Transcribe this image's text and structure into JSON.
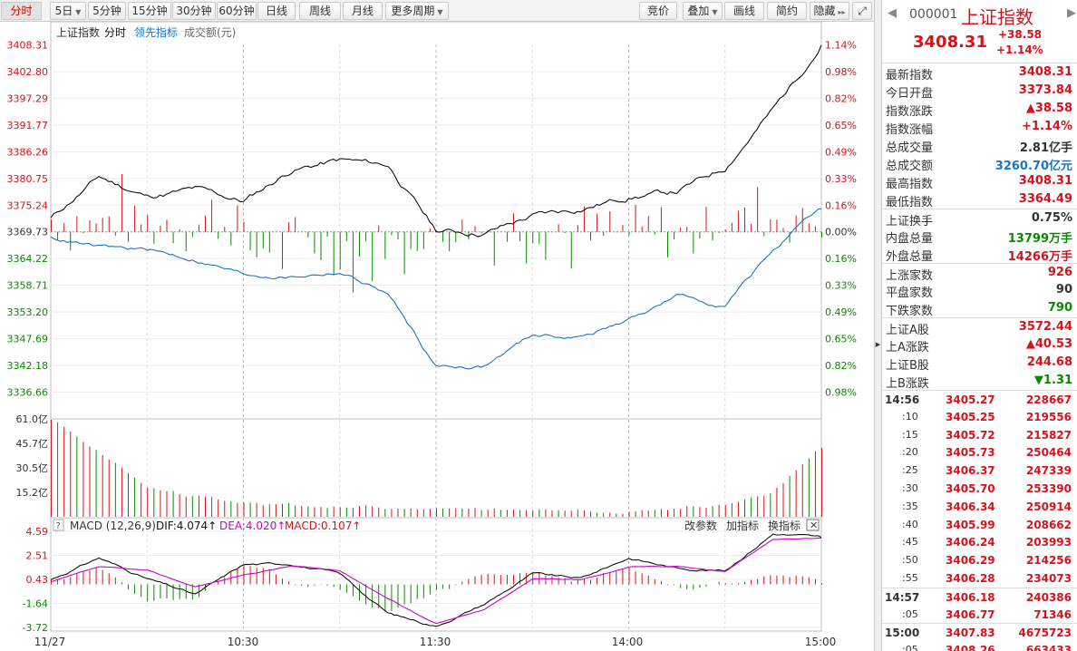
{
  "toolbar": {
    "buttons": [
      "分时",
      "5日",
      "5分钟",
      "15分钟",
      "30分钟",
      "60分钟",
      "日线",
      "周线",
      "月线",
      "更多周期"
    ],
    "right_buttons": [
      "竞价",
      "叠加",
      "画线",
      "简约",
      "隐藏"
    ]
  },
  "chart": {
    "legend": {
      "name": "上证指数",
      "period": "分时",
      "leading": "领先指标",
      "turnover": "成交额(元)"
    },
    "price_axis": [
      "3408.31",
      "3402.80",
      "3397.29",
      "3391.77",
      "3386.26",
      "3380.75",
      "3375.24",
      "3369.73",
      "3364.22",
      "3358.71",
      "3353.20",
      "3347.69",
      "3342.18",
      "3336.66"
    ],
    "pct_axis": [
      "1.14%",
      "0.98%",
      "0.82%",
      "0.65%",
      "0.49%",
      "0.33%",
      "0.16%",
      "0.00%",
      "0.16%",
      "0.33%",
      "0.49%",
      "0.65%",
      "0.82%",
      "0.98%"
    ],
    "volume_axis": [
      "61.0亿",
      "45.7亿",
      "30.5亿",
      "15.2亿"
    ],
    "macd_axis": [
      "4.59",
      "2.51",
      "0.43",
      "-1.64",
      "-3.72"
    ],
    "macd_header": {
      "title": "MACD (12,26,9)",
      "dif": "DIF:4.074↑",
      "dea": "DEA:4.020↑",
      "macd": "MACD:0.107↑"
    },
    "macd_links": [
      "改参数",
      "加指标",
      "换指标"
    ],
    "time_labels": [
      "11/27",
      "10:30",
      "11:30",
      "14:00",
      "15:00"
    ],
    "colors": {
      "up": "#d6131c",
      "down": "#0b8a00",
      "price_line": "#111111",
      "leading_line": "#1c74c6",
      "dea_line": "#cc00cc",
      "grid": "#e4e4e4"
    },
    "chart_data": [
      {
        "type": "line",
        "title": "上证指数 分时",
        "x": [
          "09:30",
          "09:45",
          "10:00",
          "10:15",
          "10:30",
          "10:45",
          "11:00",
          "11:15",
          "11:30",
          "13:15",
          "13:30",
          "13:45",
          "14:00",
          "14:15",
          "14:30",
          "14:45",
          "15:00"
        ],
        "series": [
          {
            "name": "上证指数",
            "values": [
              3372.5,
              3381.0,
              3377.0,
              3378.5,
              3376.0,
              3382.5,
              3384.5,
              3383.5,
              3370.0,
              3369.5,
              3373.0,
              3374.5,
              3377.0,
              3378.0,
              3383.0,
              3395.0,
              3408.3
            ]
          },
          {
            "name": "领先指标",
            "values": [
              3368.5,
              3366.5,
              3366.0,
              3364.0,
              3361.0,
              3360.5,
              3361.5,
              3357.0,
              3342.0,
              3342.0,
              3348.5,
              3348.0,
              3351.5,
              3356.5,
              3354.5,
              3366.0,
              3374.5
            ]
          }
        ],
        "ylim": [
          3336.66,
          3408.31
        ]
      },
      {
        "type": "bar",
        "title": "成交额",
        "ylabel": "成交额(元)",
        "x": [
          "09:30",
          "10:00",
          "10:30",
          "11:00",
          "11:30",
          "13:30",
          "14:00",
          "14:30",
          "14:45",
          "15:00"
        ],
        "values": [
          61.0,
          18.0,
          8.0,
          6.0,
          5.0,
          4.5,
          4.5,
          7.0,
          16.0,
          43.0
        ],
        "ylim": [
          0,
          61.0
        ]
      },
      {
        "type": "line",
        "title": "MACD (12,26,9)",
        "x": [
          "09:30",
          "09:45",
          "10:00",
          "10:15",
          "10:30",
          "10:45",
          "11:00",
          "11:15",
          "11:30",
          "13:15",
          "13:30",
          "13:45",
          "14:00",
          "14:15",
          "14:30",
          "14:45",
          "15:00"
        ],
        "series": [
          {
            "name": "DIF",
            "values": [
              0.4,
              2.3,
              0.5,
              -0.9,
              1.7,
              1.8,
              0.9,
              -2.5,
              -3.6,
              -1.7,
              0.9,
              0.5,
              2.3,
              1.4,
              1.2,
              4.4,
              4.074
            ]
          },
          {
            "name": "DEA",
            "values": [
              0.2,
              1.5,
              1.2,
              -0.2,
              0.8,
              1.6,
              1.2,
              -1.2,
              -3.4,
              -2.2,
              0.5,
              0.4,
              1.5,
              1.6,
              1.1,
              3.9,
              4.02
            ]
          }
        ],
        "ylim": [
          -3.72,
          4.59
        ]
      }
    ]
  },
  "panel": {
    "code": "000001",
    "name": "上证指数",
    "price": "3408.31",
    "change": "+38.58",
    "change_pct": "+1.14%",
    "stats": [
      {
        "label": "最新指数",
        "value": "3408.31",
        "color": "red"
      },
      {
        "label": "今日开盘",
        "value": "3373.84",
        "color": "red"
      },
      {
        "label": "指数涨跌",
        "value": "▲38.58",
        "color": "red"
      },
      {
        "label": "指数涨幅",
        "value": "+1.14%",
        "color": "red"
      },
      {
        "label": "总成交量",
        "value": "2.81亿手",
        "color": "blk"
      },
      {
        "label": "总成交额",
        "value": "3260.70亿元",
        "color": "blu"
      },
      {
        "label": "最高指数",
        "value": "3408.31",
        "color": "red"
      },
      {
        "label": "最低指数",
        "value": "3364.49",
        "color": "red"
      }
    ],
    "stats2": [
      {
        "label": "上证换手",
        "value": "0.75%",
        "color": "blk"
      },
      {
        "label": "内盘总量",
        "value": "13799万手",
        "color": "grn"
      },
      {
        "label": "外盘总量",
        "value": "14266万手",
        "color": "red"
      }
    ],
    "stats3": [
      {
        "label": "上涨家数",
        "value": "926",
        "color": "red"
      },
      {
        "label": "平盘家数",
        "value": "90",
        "color": "blk"
      },
      {
        "label": "下跌家数",
        "value": "790",
        "color": "grn"
      }
    ],
    "stats4": [
      {
        "label": "上证A股",
        "value": "3572.44",
        "color": "red"
      },
      {
        "label": "上A涨跌",
        "value": "▲40.53",
        "color": "red"
      },
      {
        "label": "上证B股",
        "value": "244.68",
        "color": "red"
      },
      {
        "label": "上B涨跌",
        "value": "▼1.31",
        "color": "grn"
      }
    ],
    "ticks": [
      {
        "t": "14:56",
        "p": "3405.27",
        "v": "228667",
        "bold": true
      },
      {
        "t": ":10",
        "p": "3405.25",
        "v": "219556"
      },
      {
        "t": ":15",
        "p": "3405.72",
        "v": "215827"
      },
      {
        "t": ":20",
        "p": "3405.73",
        "v": "250464"
      },
      {
        "t": ":25",
        "p": "3406.37",
        "v": "247339"
      },
      {
        "t": ":30",
        "p": "3405.70",
        "v": "253390"
      },
      {
        "t": ":35",
        "p": "3406.34",
        "v": "250914"
      },
      {
        "t": ":40",
        "p": "3405.99",
        "v": "208662"
      },
      {
        "t": ":45",
        "p": "3406.24",
        "v": "203993"
      },
      {
        "t": ":50",
        "p": "3406.29",
        "v": "214256"
      },
      {
        "t": ":55",
        "p": "3406.28",
        "v": "234073"
      },
      {
        "t": "14:57",
        "p": "3406.18",
        "v": "240386",
        "bold": true
      },
      {
        "t": ":05",
        "p": "3406.77",
        "v": "71346"
      },
      {
        "t": "15:00",
        "p": "3407.83",
        "v": "4675723",
        "bold": true
      },
      {
        "t": ":05",
        "p": "3408.26",
        "v": "663433"
      }
    ]
  }
}
